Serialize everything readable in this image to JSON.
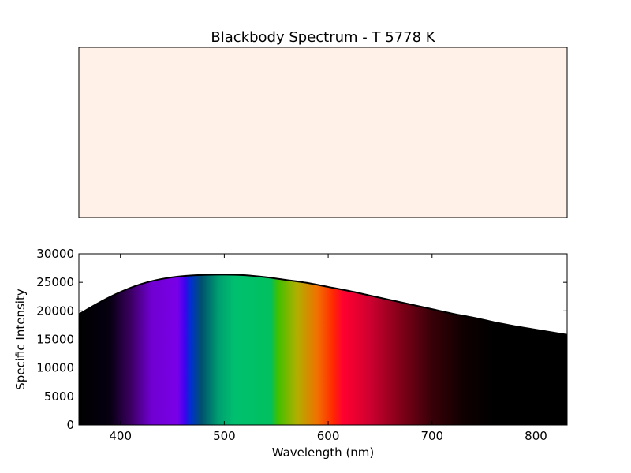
{
  "title": "Blackbody Spectrum - T 5778 K",
  "colors": {
    "swatch_fill": "#fff0e8",
    "curve": "#000000",
    "axes": "#000000"
  },
  "chart_data": [
    {
      "type": "area",
      "panel": "color-swatch",
      "title": "Blackbody Spectrum - T 5778 K",
      "color": "#fff0e8",
      "axes_visible": false
    },
    {
      "type": "area",
      "panel": "spectrum",
      "xlabel": "Wavelength (nm)",
      "ylabel": "Specific Intensity",
      "xlim": [
        360,
        830
      ],
      "ylim": [
        0,
        30000
      ],
      "xticks": [
        400,
        500,
        600,
        700,
        800
      ],
      "yticks": [
        0,
        5000,
        10000,
        15000,
        20000,
        25000,
        30000
      ],
      "grid": false,
      "fill": "visible-spectrum-colors",
      "series": [
        {
          "x": [
            360,
            380,
            400,
            420,
            440,
            460,
            480,
            500,
            520,
            540,
            560,
            580,
            600,
            620,
            640,
            660,
            680,
            700,
            720,
            740,
            760,
            780,
            800,
            830
          ],
          "values": [
            19400,
            21500,
            23300,
            24700,
            25600,
            26100,
            26300,
            26350,
            26250,
            25900,
            25400,
            24900,
            24200,
            23500,
            22700,
            21900,
            21100,
            20300,
            19500,
            18800,
            18000,
            17300,
            16700,
            15800
          ]
        }
      ]
    }
  ]
}
